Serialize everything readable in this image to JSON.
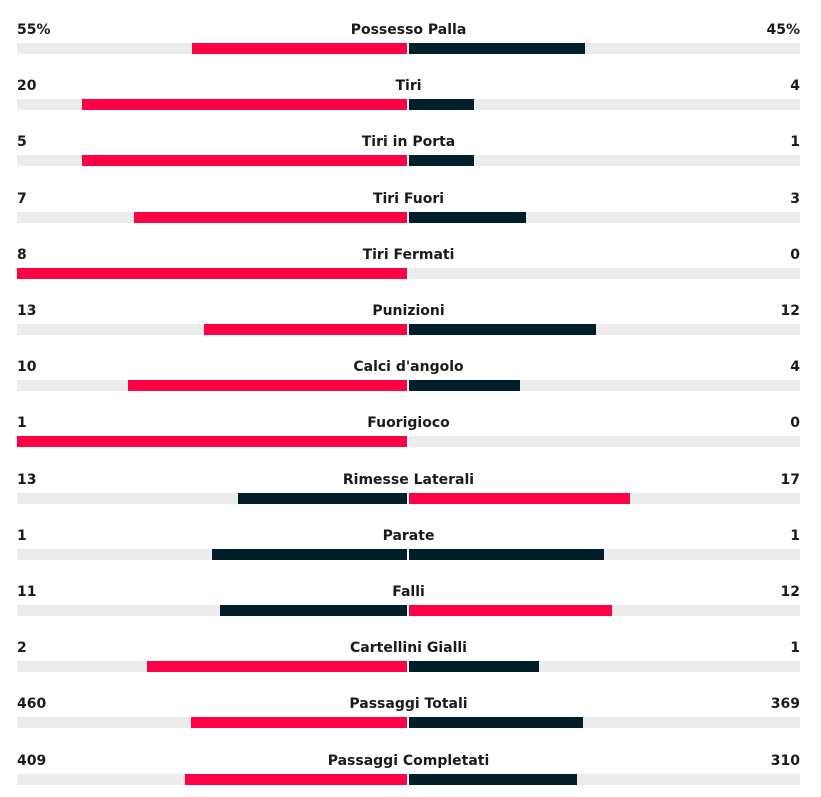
{
  "colors": {
    "leading": "#ff0046",
    "trailing": "#001e28",
    "track": "#ececec"
  },
  "stats": [
    {
      "name": "Possesso Palla",
      "home": "55%",
      "away": "45%",
      "home_share": 0.55,
      "away_share": 0.45,
      "home_color": "#ff0046",
      "away_color": "#001e28"
    },
    {
      "name": "Tiri",
      "home": "20",
      "away": "4",
      "home_share": 0.8333,
      "away_share": 0.1667,
      "home_color": "#ff0046",
      "away_color": "#001e28"
    },
    {
      "name": "Tiri in Porta",
      "home": "5",
      "away": "1",
      "home_share": 0.8333,
      "away_share": 0.1667,
      "home_color": "#ff0046",
      "away_color": "#001e28"
    },
    {
      "name": "Tiri Fuori",
      "home": "7",
      "away": "3",
      "home_share": 0.7,
      "away_share": 0.3,
      "home_color": "#ff0046",
      "away_color": "#001e28"
    },
    {
      "name": "Tiri Fermati",
      "home": "8",
      "away": "0",
      "home_share": 1.0,
      "away_share": 0.0,
      "home_color": "#ff0046",
      "away_color": "#001e28"
    },
    {
      "name": "Punizioni",
      "home": "13",
      "away": "12",
      "home_share": 0.52,
      "away_share": 0.48,
      "home_color": "#ff0046",
      "away_color": "#001e28"
    },
    {
      "name": "Calci d'angolo",
      "home": "10",
      "away": "4",
      "home_share": 0.7143,
      "away_share": 0.2857,
      "home_color": "#ff0046",
      "away_color": "#001e28"
    },
    {
      "name": "Fuorigioco",
      "home": "1",
      "away": "0",
      "home_share": 1.0,
      "away_share": 0.0,
      "home_color": "#ff0046",
      "away_color": "#001e28"
    },
    {
      "name": "Rimesse Laterali",
      "home": "13",
      "away": "17",
      "home_share": 0.4333,
      "away_share": 0.5667,
      "home_color": "#001e28",
      "away_color": "#ff0046"
    },
    {
      "name": "Parate",
      "home": "1",
      "away": "1",
      "home_share": 0.5,
      "away_share": 0.5,
      "home_color": "#001e28",
      "away_color": "#001e28"
    },
    {
      "name": "Falli",
      "home": "11",
      "away": "12",
      "home_share": 0.4783,
      "away_share": 0.5217,
      "home_color": "#001e28",
      "away_color": "#ff0046"
    },
    {
      "name": "Cartellini Gialli",
      "home": "2",
      "away": "1",
      "home_share": 0.6667,
      "away_share": 0.3333,
      "home_color": "#ff0046",
      "away_color": "#001e28"
    },
    {
      "name": "Passaggi Totali",
      "home": "460",
      "away": "369",
      "home_share": 0.5549,
      "away_share": 0.4451,
      "home_color": "#ff0046",
      "away_color": "#001e28"
    },
    {
      "name": "Passaggi Completati",
      "home": "409",
      "away": "310",
      "home_share": 0.5688,
      "away_share": 0.4312,
      "home_color": "#ff0046",
      "away_color": "#001e28"
    }
  ]
}
